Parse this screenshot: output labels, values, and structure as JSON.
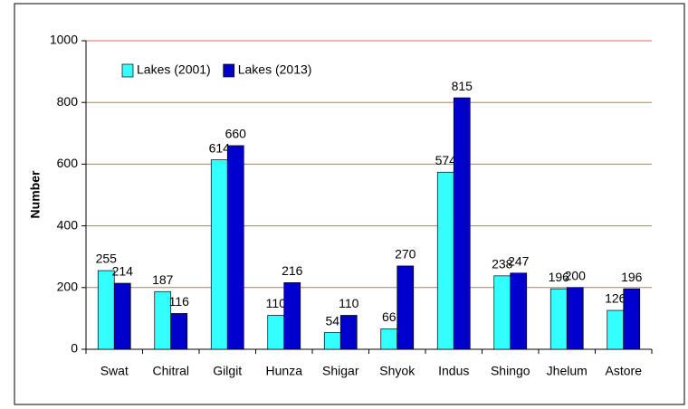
{
  "chart_data": {
    "type": "bar",
    "y_label": "Number",
    "categories": [
      "Swat",
      "Chitral",
      "Gilgit",
      "Hunza",
      "Shigar",
      "Shyok",
      "Indus",
      "Shingo",
      "Jhelum",
      "Astore"
    ],
    "series": [
      {
        "name": "Lakes (2001)",
        "color": "#33ffff",
        "values": [
          255,
          187,
          614,
          110,
          54,
          66,
          574,
          238,
          196,
          126
        ]
      },
      {
        "name": "Lakes (2013)",
        "color": "#0000cc",
        "values": [
          214,
          116,
          660,
          216,
          110,
          270,
          815,
          247,
          200,
          196
        ]
      }
    ],
    "ylim": [
      0,
      1000
    ],
    "yticks": [
      0,
      200,
      400,
      600,
      800,
      1000
    ],
    "grid": true,
    "legend": "top-left"
  }
}
